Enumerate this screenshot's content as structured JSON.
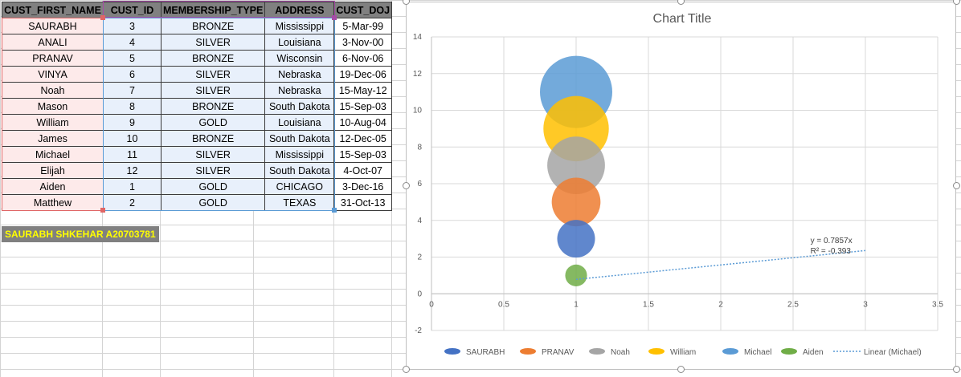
{
  "sheet": {
    "headers": [
      "CUST_FIRST_NAME",
      "CUST_ID",
      "MEMBERSHIP_TYPE",
      "ADDRESS",
      "CUST_DOJ"
    ],
    "rows": [
      [
        "SAURABH",
        "3",
        "BRONZE",
        "Mississippi",
        "5-Mar-99"
      ],
      [
        "ANALI",
        "4",
        "SILVER",
        "Louisiana",
        "3-Nov-00"
      ],
      [
        "PRANAV",
        "5",
        "BRONZE",
        "Wisconsin",
        "6-Nov-06"
      ],
      [
        "VINYA",
        "6",
        "SILVER",
        "Nebraska",
        "19-Dec-06"
      ],
      [
        "Noah",
        "7",
        "SILVER",
        "Nebraska",
        "15-May-12"
      ],
      [
        "Mason",
        "8",
        "BRONZE",
        "South Dakota",
        "15-Sep-03"
      ],
      [
        "William",
        "9",
        "GOLD",
        "Louisiana",
        "10-Aug-04"
      ],
      [
        "James",
        "10",
        "BRONZE",
        "South Dakota",
        "12-Dec-05"
      ],
      [
        "Michael",
        "11",
        "SILVER",
        "Mississippi",
        "15-Sep-03"
      ],
      [
        "Elijah",
        "12",
        "SILVER",
        "South Dakota",
        "4-Oct-07"
      ],
      [
        "Aiden",
        "1",
        "GOLD",
        "CHICAGO",
        "3-Dec-16"
      ],
      [
        "Matthew",
        "2",
        "GOLD",
        "TEXAS",
        "31-Oct-13"
      ]
    ],
    "name_cell": "SAURABH SHKEHAR  A20703781"
  },
  "chart_data": {
    "type": "scatter",
    "title": "Chart Title",
    "xlim": [
      0,
      3.5
    ],
    "ylim": [
      -2,
      14
    ],
    "x_ticks": [
      "0",
      "0.5",
      "1",
      "1.5",
      "2",
      "2.5",
      "3",
      "3.5"
    ],
    "y_ticks": [
      "-2",
      "0",
      "2",
      "4",
      "6",
      "8",
      "10",
      "12",
      "14"
    ],
    "grid": true,
    "legend_position": "bottom",
    "series": [
      {
        "name": "SAURABH",
        "x": 1,
        "y": 3,
        "size": 3,
        "color": "#4472c4"
      },
      {
        "name": "PRANAV",
        "x": 1,
        "y": 5,
        "size": 5,
        "color": "#ed7d31"
      },
      {
        "name": "Noah",
        "x": 1,
        "y": 7,
        "size": 7,
        "color": "#a5a5a5"
      },
      {
        "name": "William",
        "x": 1,
        "y": 9,
        "size": 9,
        "color": "#ffc000"
      },
      {
        "name": "Michael",
        "x": 1,
        "y": 11,
        "size": 11,
        "color": "#5b9bd5"
      },
      {
        "name": "Aiden",
        "x": 1,
        "y": 1,
        "size": 1,
        "color": "#70ad47"
      }
    ],
    "trendline": {
      "name": "Linear (Michael)",
      "x": [
        1,
        3
      ],
      "slope": 0.7857,
      "equation": "y = 0.7857x",
      "r_squared": "R² = -0.393",
      "color": "#5b9bd5"
    }
  }
}
